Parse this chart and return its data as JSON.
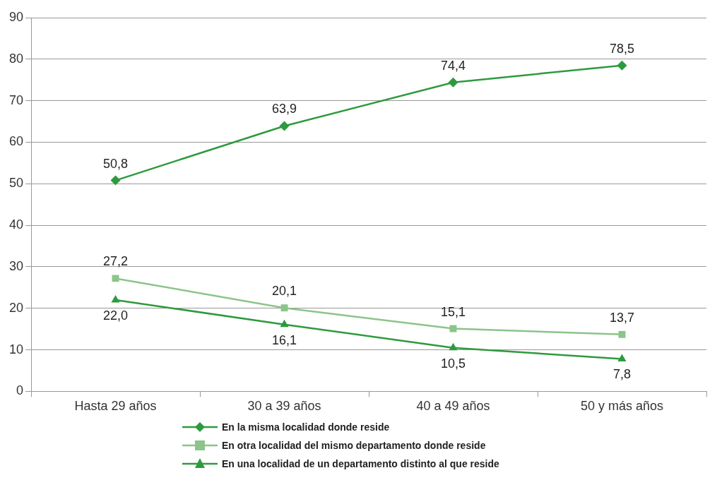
{
  "chart_data": {
    "type": "line",
    "categories": [
      "Hasta 29 años",
      "30 a 39 años",
      "40 a 49 años",
      "50 y más años"
    ],
    "series": [
      {
        "name": "En la misma localidad donde reside",
        "color": "#2e9a3e",
        "marker": "diamond",
        "values": [
          50.8,
          63.9,
          74.4,
          78.5
        ],
        "value_labels": [
          "50,8",
          "63,9",
          "74,4",
          "78,5"
        ]
      },
      {
        "name": "En otra localidad del mismo departamento donde reside",
        "color": "#8cc48a",
        "marker": "square",
        "values": [
          27.2,
          20.1,
          15.1,
          13.7
        ],
        "value_labels": [
          "27,2",
          "20,1",
          "15,1",
          "13,7"
        ]
      },
      {
        "name": "En una localidad de un departamento distinto al que reside",
        "color": "#2e9a3e",
        "marker": "triangle",
        "values": [
          22.0,
          16.1,
          10.5,
          7.8
        ],
        "value_labels": [
          "22,0",
          "16,1",
          "10,5",
          "7,8"
        ]
      }
    ],
    "ylim": [
      0,
      90
    ],
    "yticks": [
      0,
      10,
      20,
      30,
      40,
      50,
      60,
      70,
      80,
      90
    ],
    "grid": "y",
    "legend": "bottom"
  }
}
